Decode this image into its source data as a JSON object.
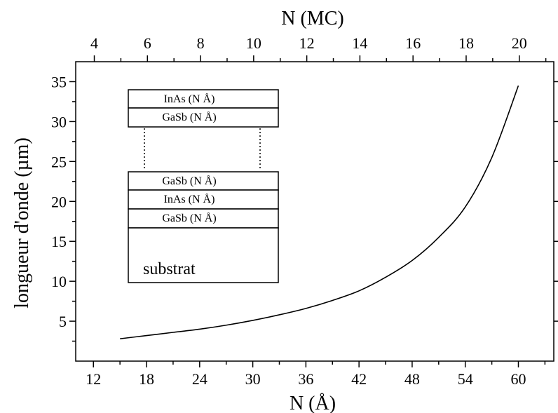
{
  "chart_data": {
    "type": "line",
    "title": "",
    "xlabel": "N (Å)",
    "x2label": "N (MC)",
    "ylabel": "longueur d'onde (µm)",
    "xlim": [
      10,
      64
    ],
    "ylim": [
      0,
      37.5
    ],
    "x2lim": [
      3.3,
      21.3
    ],
    "x_ticks": [
      12,
      18,
      24,
      30,
      36,
      42,
      48,
      54,
      60
    ],
    "x2_ticks": [
      4,
      6,
      8,
      10,
      12,
      14,
      16,
      18,
      20
    ],
    "y_ticks": [
      5,
      10,
      15,
      20,
      25,
      30,
      35
    ],
    "grid": false,
    "series": [
      {
        "x": [
          15,
          18,
          21,
          24,
          27,
          30,
          33,
          36,
          39,
          42,
          45,
          48,
          51,
          54,
          57,
          60
        ],
        "y": [
          2.8,
          3.2,
          3.6,
          4.0,
          4.5,
          5.1,
          5.8,
          6.6,
          7.6,
          8.8,
          10.5,
          12.6,
          15.5,
          19.3,
          25.5,
          34.5
        ]
      }
    ]
  },
  "inset": {
    "top_layers": [
      "InAs (N Å)",
      "GaSb (N Å)"
    ],
    "bottom_layers": [
      "GaSb (N Å)",
      "InAs (N Å)",
      "GaSb (N Å)"
    ],
    "substrate_label": "substrat"
  }
}
